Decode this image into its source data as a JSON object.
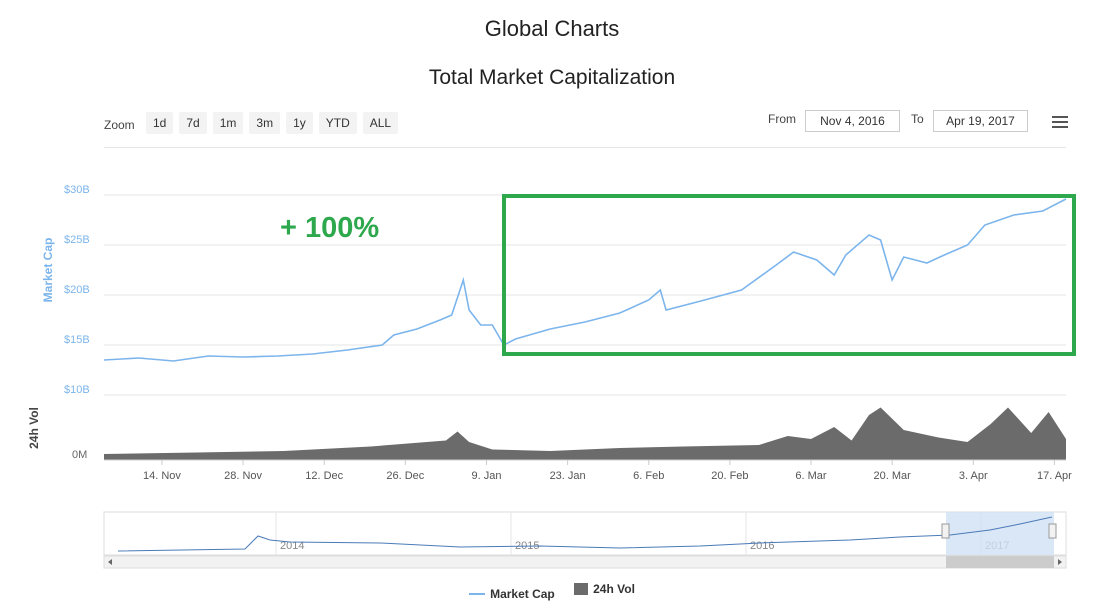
{
  "page_title": "Global Charts",
  "toolbar": {
    "zoom_label": "Zoom",
    "zoom_options": [
      "1d",
      "7d",
      "1m",
      "3m",
      "1y",
      "YTD",
      "ALL"
    ],
    "from_label": "From",
    "from_value": "Nov 4, 2016",
    "to_label": "To",
    "to_value": "Apr 19, 2017",
    "menu_icon": "hamburger-menu-icon"
  },
  "annotation": "+ 100%",
  "colors": {
    "line": "#7cb5ec",
    "volume": "#6b6b6b",
    "highlight_box": "#2ea84d",
    "annotation": "#2ea84d"
  },
  "legend": [
    {
      "label": "Market Cap",
      "icon": "line"
    },
    {
      "label": "24h Vol",
      "icon": "box"
    }
  ],
  "navigator": {
    "year_labels": [
      "2014",
      "2015",
      "2016",
      "2017"
    ]
  },
  "chart_data": {
    "type": "line",
    "title": "Total Market Capitalization",
    "ylabel": "Market Cap",
    "ylabel_volume": "24h Vol",
    "y_ticks": [
      "$10B",
      "$15B",
      "$20B",
      "$25B",
      "$30B"
    ],
    "ylim": [
      10,
      30
    ],
    "volume_tick": "0M",
    "x_ticks": [
      "14. Nov",
      "28. Nov",
      "12. Dec",
      "26. Dec",
      "9. Jan",
      "23. Jan",
      "6. Feb",
      "20. Feb",
      "6. Mar",
      "20. Mar",
      "3. Apr",
      "17. Apr"
    ],
    "grid": true,
    "legend_position": "bottom-center",
    "series": [
      {
        "name": "Market Cap",
        "x": [
          "2016-11-04",
          "2016-11-10",
          "2016-11-16",
          "2016-11-22",
          "2016-11-28",
          "2016-12-04",
          "2016-12-10",
          "2016-12-16",
          "2016-12-22",
          "2016-12-24",
          "2016-12-28",
          "2017-01-01",
          "2017-01-03",
          "2017-01-05",
          "2017-01-06",
          "2017-01-08",
          "2017-01-10",
          "2017-01-12",
          "2017-01-14",
          "2017-01-20",
          "2017-01-26",
          "2017-02-01",
          "2017-02-06",
          "2017-02-08",
          "2017-02-09",
          "2017-02-15",
          "2017-02-22",
          "2017-02-28",
          "2017-03-03",
          "2017-03-07",
          "2017-03-10",
          "2017-03-12",
          "2017-03-16",
          "2017-03-18",
          "2017-03-20",
          "2017-03-22",
          "2017-03-26",
          "2017-03-29",
          "2017-04-02",
          "2017-04-05",
          "2017-04-10",
          "2017-04-15",
          "2017-04-19"
        ],
        "values": [
          13.5,
          13.7,
          13.4,
          13.9,
          13.8,
          13.9,
          14.1,
          14.5,
          15.0,
          16.0,
          16.6,
          17.5,
          18.0,
          21.5,
          18.5,
          17.0,
          17.0,
          15.0,
          15.6,
          16.6,
          17.3,
          18.2,
          19.5,
          20.5,
          18.5,
          19.4,
          20.5,
          23.0,
          24.3,
          23.5,
          22.0,
          24.0,
          26.0,
          25.5,
          21.5,
          23.8,
          23.2,
          24.0,
          25.0,
          27.0,
          28.0,
          28.4,
          29.6
        ]
      },
      {
        "name": "24h Vol",
        "x": [
          "2016-11-04",
          "2016-11-20",
          "2016-12-05",
          "2016-12-20",
          "2017-01-02",
          "2017-01-04",
          "2017-01-06",
          "2017-01-10",
          "2017-01-20",
          "2017-02-01",
          "2017-02-12",
          "2017-02-25",
          "2017-03-02",
          "2017-03-06",
          "2017-03-10",
          "2017-03-13",
          "2017-03-16",
          "2017-03-18",
          "2017-03-22",
          "2017-03-28",
          "2017-04-02",
          "2017-04-06",
          "2017-04-09",
          "2017-04-13",
          "2017-04-16",
          "2017-04-19"
        ],
        "values": [
          0.4,
          0.5,
          0.6,
          0.9,
          1.3,
          1.9,
          1.2,
          0.7,
          0.6,
          0.8,
          0.9,
          1.0,
          1.6,
          1.4,
          2.2,
          1.3,
          3.0,
          3.5,
          2.0,
          1.5,
          1.2,
          2.4,
          3.5,
          1.8,
          3.2,
          1.4
        ]
      }
    ]
  }
}
